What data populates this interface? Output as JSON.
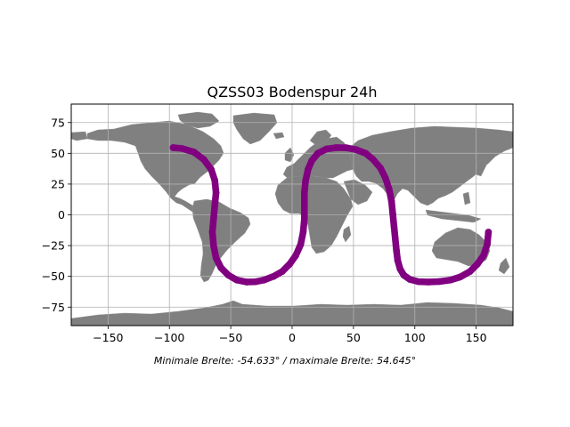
{
  "chart_data": {
    "type": "scatter",
    "title": "QZSS03 Bodenspur 24h",
    "caption": "Minimale Breite: -54.633° / maximale Breite: 54.645°",
    "xlabel": "",
    "ylabel": "",
    "xlim": [
      -180,
      180
    ],
    "ylim": [
      -90,
      90
    ],
    "xticks": [
      -150,
      -100,
      -50,
      0,
      50,
      100,
      150
    ],
    "yticks": [
      -75,
      -50,
      -25,
      0,
      25,
      50,
      75
    ],
    "xtick_labels": [
      "−150",
      "−100",
      "−50",
      "0",
      "50",
      "100",
      "150"
    ],
    "ytick_labels": [
      "−75",
      "−50",
      "−25",
      "0",
      "25",
      "50",
      "75"
    ],
    "grid": true,
    "background": "world-map-landmass",
    "colors": {
      "track": "#800080",
      "land": "#808080",
      "grid": "#b0b0b0"
    },
    "series": [
      {
        "lon": [
          -97,
          -90,
          -80,
          -72,
          -66,
          -63,
          -62,
          -63,
          -64,
          -65,
          -64,
          -62,
          -58,
          -52,
          -45,
          -37,
          -30,
          -23,
          -15,
          -8,
          -2,
          3,
          7,
          9,
          10,
          10,
          10,
          11,
          13,
          16,
          21,
          28,
          36,
          44,
          52,
          60,
          66,
          72,
          76,
          79,
          81,
          82,
          83,
          84,
          85,
          86,
          88,
          91,
          96,
          103,
          111,
          120,
          129,
          137,
          145,
          151,
          156,
          159,
          160
        ],
        "lat": [
          54.6,
          54,
          51,
          45,
          37,
          28,
          18,
          8,
          -3,
          -14,
          -25,
          -35,
          -43,
          -49,
          -53,
          -54.6,
          -54.4,
          -53,
          -50,
          -46,
          -40,
          -33,
          -24,
          -14,
          -3,
          8,
          18,
          28,
          37,
          44,
          50,
          53.5,
          54.6,
          54.5,
          53,
          50,
          45,
          38,
          30,
          21,
          11,
          1,
          -9,
          -19,
          -29,
          -37,
          -44,
          -49,
          -52.5,
          -54.3,
          -54.6,
          -54.2,
          -53,
          -50.5,
          -46,
          -40,
          -33,
          -24,
          -14
        ]
      }
    ]
  }
}
